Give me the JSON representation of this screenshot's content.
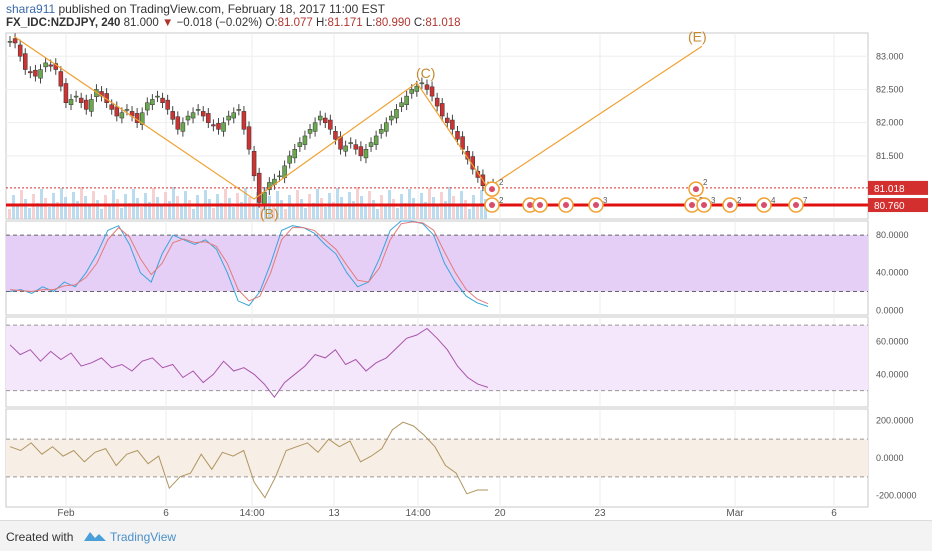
{
  "header": {
    "publisher": "shara911",
    "published_text": "published on TradingView.com, February 18, 2017 11:00 EST",
    "symbol": "FX_IDC:NZDJPY, 240",
    "last": "81.000",
    "change": "−0.018 (−0.02%)",
    "open_label": "O:",
    "open": "81.077",
    "high_label": "H:",
    "high": "81.171",
    "low_label": "L:",
    "low": "80.990",
    "close_label": "C:",
    "close": "81.018"
  },
  "footer": {
    "created_with": "Created with",
    "brand": "TradingView"
  },
  "chart_data": [
    {
      "type": "candlestick",
      "panel": "price",
      "ylim": [
        80.55,
        83.35
      ],
      "y_ticks": [
        "83.000",
        "82.500",
        "82.000",
        "81.500"
      ],
      "price_labels": [
        {
          "text": "81.018",
          "value": 81.018,
          "color": "#d32f2f"
        },
        {
          "text": "80.760",
          "value": 80.76,
          "color": "#d32f2f"
        }
      ],
      "x_ticks": [
        "Feb",
        "6",
        "14:00",
        "13",
        "14:00",
        "20",
        "23",
        "Mar",
        "6"
      ],
      "wave_labels": [
        {
          "text": "(B)",
          "value": 80.62
        },
        {
          "text": "(C)",
          "value": 82.67
        },
        {
          "text": "(E)",
          "value": 83.28
        }
      ],
      "close_path": [
        83.2,
        82.8,
        82.7,
        82.9,
        82.8,
        82.3,
        82.4,
        82.2,
        82.5,
        82.3,
        82.1,
        82.2,
        82.0,
        82.3,
        82.4,
        82.2,
        81.9,
        82.1,
        82.2,
        82.0,
        81.9,
        82.1,
        82.2,
        81.6,
        80.8,
        81.1,
        81.2,
        81.5,
        81.7,
        81.9,
        82.1,
        81.9,
        81.6,
        81.7,
        81.5,
        81.7,
        81.9,
        82.1,
        82.3,
        82.5,
        82.6,
        82.4,
        82.1,
        81.9,
        81.6,
        81.3,
        81.05,
        81.02
      ],
      "projection": [
        81.02,
        83.15
      ],
      "dashed_level": 81.018,
      "support_level": 80.76
    },
    {
      "type": "line",
      "panel": "stochastic",
      "ylim": [
        -5,
        95
      ],
      "y_ticks": [
        "80.0000",
        "40.0000",
        "0.0000"
      ],
      "bands": [
        20,
        80
      ],
      "series": [
        {
          "color": "#3aa4d9",
          "values": [
            20,
            22,
            18,
            25,
            20,
            30,
            25,
            40,
            60,
            85,
            90,
            70,
            40,
            30,
            60,
            80,
            75,
            70,
            75,
            65,
            40,
            10,
            5,
            20,
            50,
            85,
            90,
            88,
            82,
            70,
            60,
            40,
            25,
            30,
            55,
            85,
            95,
            95,
            92,
            80,
            50,
            30,
            15,
            8,
            4
          ]
        },
        {
          "color": "#e47a7a",
          "values": [
            22,
            21,
            20,
            22,
            22,
            26,
            27,
            35,
            50,
            75,
            88,
            78,
            55,
            38,
            50,
            72,
            76,
            72,
            73,
            68,
            50,
            22,
            10,
            15,
            40,
            75,
            88,
            88,
            85,
            75,
            65,
            48,
            32,
            30,
            45,
            75,
            92,
            94,
            93,
            85,
            62,
            40,
            22,
            12,
            7
          ]
        }
      ]
    },
    {
      "type": "line",
      "panel": "rsi",
      "ylim": [
        20,
        75
      ],
      "y_ticks": [
        "60.0000",
        "40.0000"
      ],
      "bands": [
        30,
        70
      ],
      "series": [
        {
          "color": "#a855a8",
          "values": [
            58,
            52,
            55,
            48,
            54,
            49,
            53,
            45,
            47,
            50,
            44,
            46,
            42,
            48,
            50,
            44,
            46,
            38,
            42,
            35,
            40,
            48,
            42,
            44,
            40,
            34,
            26,
            35,
            40,
            45,
            52,
            50,
            55,
            46,
            49,
            42,
            47,
            50,
            56,
            62,
            64,
            68,
            62,
            55,
            45,
            38,
            34,
            32
          ]
        }
      ]
    },
    {
      "type": "line",
      "panel": "cci",
      "ylim": [
        -260,
        260
      ],
      "y_ticks": [
        "200.0000",
        "0.0000",
        "-200.0000"
      ],
      "bands": [
        -100,
        100
      ],
      "series": [
        {
          "color": "#b09560",
          "values": [
            60,
            40,
            80,
            20,
            60,
            10,
            40,
            -20,
            30,
            50,
            -40,
            20,
            40,
            -30,
            10,
            -160,
            -100,
            -80,
            20,
            -60,
            30,
            10,
            40,
            -130,
            -210,
            -100,
            40,
            60,
            80,
            30,
            100,
            60,
            90,
            -20,
            10,
            50,
            150,
            190,
            170,
            120,
            60,
            -40,
            -80,
            -190,
            -170,
            -170
          ]
        }
      ]
    }
  ]
}
